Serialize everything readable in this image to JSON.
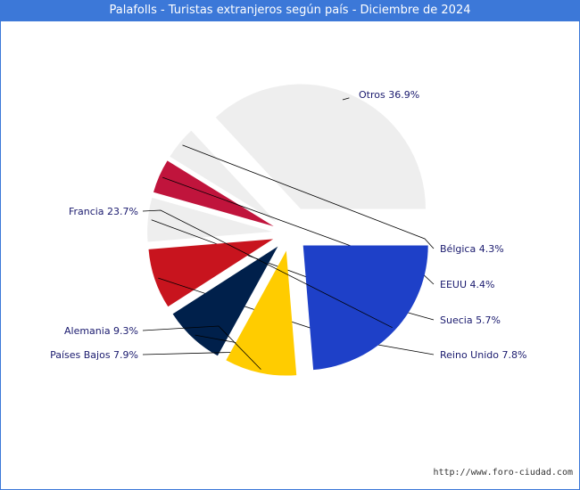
{
  "title": "Palafolls - Turistas extranjeros según país - Diciembre de 2024",
  "footer": "http://www.foro-ciudad.com",
  "colors": {
    "title_bg": "#3c78d8",
    "title_text": "#ffffff",
    "label_text": "#1a1a6e",
    "leader_line": "#000000"
  },
  "chart_data": {
    "type": "pie",
    "title": "Palafolls - Turistas extranjeros según país - Diciembre de 2024",
    "slices": [
      {
        "name": "Otros",
        "value": 36.9,
        "label": "Otros 36.9%",
        "color": "#eeeeee"
      },
      {
        "name": "Bélgica",
        "value": 4.3,
        "label": "Bélgica 4.3%",
        "color": "#eeeeee"
      },
      {
        "name": "EEUU",
        "value": 4.4,
        "label": "EEUU 4.4%",
        "color": "#c0143c"
      },
      {
        "name": "Suecia",
        "value": 5.7,
        "label": "Suecia 5.7%",
        "color": "#eeeeee"
      },
      {
        "name": "Reino Unido",
        "value": 7.8,
        "label": "Reino Unido 7.8%",
        "color": "#c8141e"
      },
      {
        "name": "Países Bajos",
        "value": 7.9,
        "label": "Países Bajos 7.9%",
        "color": "#00204b"
      },
      {
        "name": "Alemania",
        "value": 9.3,
        "label": "Alemania 9.3%",
        "color": "#ffcc00"
      },
      {
        "name": "Francia",
        "value": 23.7,
        "label": "Francia 23.7%",
        "color": "#1e40c8"
      }
    ]
  }
}
